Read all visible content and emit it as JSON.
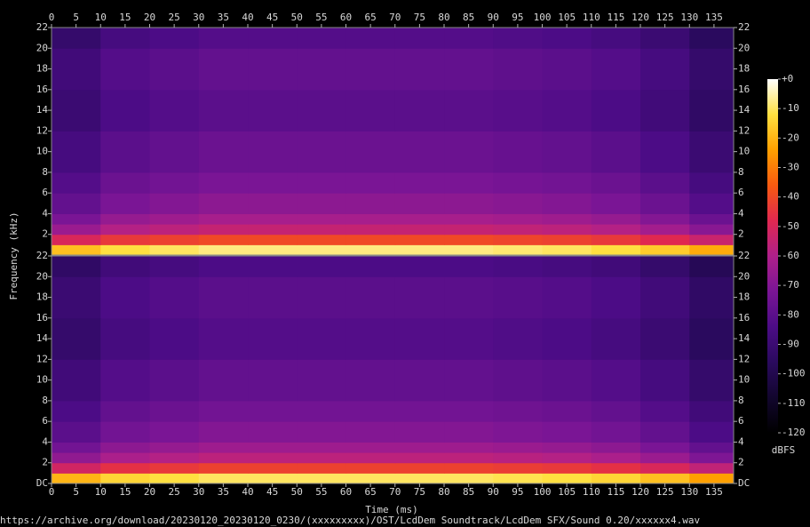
{
  "chart_data": {
    "type": "spectrogram",
    "xlabel": "Time (ms)",
    "ylabel": "Frequency (kHz)",
    "xlim": [
      0,
      139
    ],
    "xticks": [
      0,
      5,
      10,
      15,
      20,
      25,
      30,
      35,
      40,
      45,
      50,
      55,
      60,
      65,
      70,
      75,
      80,
      85,
      90,
      95,
      100,
      105,
      110,
      115,
      120,
      125,
      130,
      135
    ],
    "ylim": [
      0,
      22
    ],
    "xbins": [
      0,
      10,
      20,
      30,
      40,
      50,
      60,
      70,
      80,
      90,
      100,
      110,
      120,
      130,
      139
    ],
    "ybins": [
      0,
      1,
      2,
      3,
      4,
      6,
      8,
      12,
      16,
      20,
      22
    ],
    "zlim": [
      -120,
      0
    ],
    "zticks": [
      {
        "value": 0,
        "label": "+0"
      },
      -10,
      -20,
      -30,
      -40,
      -50,
      -60,
      -70,
      -80,
      -90,
      -100,
      -110,
      -120
    ],
    "zlabel": "dBFS",
    "colormap": [
      "#000000",
      "#12062e",
      "#2a0a5e",
      "#4c0c86",
      "#7a1595",
      "#b0208a",
      "#e02850",
      "#f85a10",
      "#ffa000",
      "#ffe040",
      "#ffffff"
    ],
    "channels": [
      {
        "yticks": [
          2,
          4,
          6,
          8,
          10,
          12,
          14,
          16,
          18,
          20,
          22
        ],
        "values": [
          [
            -18,
            -12,
            -10,
            -8,
            -8,
            -8,
            -8,
            -8,
            -8,
            -9,
            -10,
            -12,
            -16,
            -22
          ],
          [
            -50,
            -44,
            -42,
            -40,
            -40,
            -40,
            -40,
            -40,
            -40,
            -41,
            -42,
            -44,
            -48,
            -54
          ],
          [
            -65,
            -59,
            -57,
            -55,
            -55,
            -55,
            -55,
            -55,
            -55,
            -56,
            -57,
            -59,
            -63,
            -69
          ],
          [
            -72,
            -66,
            -64,
            -62,
            -62,
            -62,
            -62,
            -62,
            -62,
            -63,
            -64,
            -66,
            -70,
            -76
          ],
          [
            -78,
            -72,
            -70,
            -68,
            -68,
            -68,
            -68,
            -68,
            -68,
            -69,
            -70,
            -72,
            -76,
            -82
          ],
          [
            -82,
            -76,
            -74,
            -72,
            -72,
            -72,
            -72,
            -72,
            -72,
            -73,
            -74,
            -76,
            -80,
            -86
          ],
          [
            -86,
            -80,
            -78,
            -76,
            -76,
            -76,
            -76,
            -76,
            -76,
            -77,
            -78,
            -80,
            -84,
            -90
          ],
          [
            -90,
            -84,
            -82,
            -80,
            -80,
            -80,
            -80,
            -80,
            -80,
            -81,
            -82,
            -84,
            -88,
            -94
          ],
          [
            -88,
            -82,
            -80,
            -78,
            -78,
            -78,
            -78,
            -78,
            -78,
            -79,
            -80,
            -82,
            -86,
            -92
          ],
          [
            -92,
            -86,
            -84,
            -82,
            -82,
            -82,
            -82,
            -82,
            -82,
            -83,
            -84,
            -86,
            -90,
            -96
          ]
        ]
      },
      {
        "yticks": [
          {
            "value": 0,
            "label": "DC"
          },
          2,
          4,
          6,
          8,
          10,
          12,
          14,
          16,
          18,
          20,
          22
        ],
        "values": [
          [
            -20,
            -14,
            -12,
            -10,
            -10,
            -10,
            -10,
            -10,
            -10,
            -11,
            -12,
            -14,
            -18,
            -24
          ],
          [
            -52,
            -46,
            -44,
            -42,
            -42,
            -42,
            -42,
            -42,
            -42,
            -43,
            -44,
            -46,
            -50,
            -56
          ],
          [
            -67,
            -61,
            -59,
            -57,
            -57,
            -57,
            -57,
            -57,
            -57,
            -58,
            -59,
            -61,
            -65,
            -71
          ],
          [
            -74,
            -68,
            -66,
            -64,
            -64,
            -64,
            -64,
            -64,
            -64,
            -65,
            -66,
            -68,
            -72,
            -78
          ],
          [
            -80,
            -74,
            -72,
            -70,
            -70,
            -70,
            -70,
            -70,
            -70,
            -71,
            -72,
            -74,
            -78,
            -84
          ],
          [
            -84,
            -78,
            -76,
            -74,
            -74,
            -74,
            -74,
            -74,
            -74,
            -75,
            -76,
            -78,
            -82,
            -88
          ],
          [
            -88,
            -82,
            -80,
            -78,
            -78,
            -78,
            -78,
            -78,
            -78,
            -79,
            -80,
            -82,
            -86,
            -92
          ],
          [
            -92,
            -86,
            -84,
            -82,
            -82,
            -82,
            -82,
            -82,
            -82,
            -83,
            -84,
            -86,
            -90,
            -96
          ],
          [
            -90,
            -84,
            -82,
            -80,
            -80,
            -80,
            -80,
            -80,
            -80,
            -81,
            -82,
            -84,
            -88,
            -94
          ],
          [
            -94,
            -88,
            -86,
            -84,
            -84,
            -84,
            -84,
            -84,
            -84,
            -85,
            -86,
            -88,
            -92,
            -98
          ]
        ]
      }
    ]
  },
  "footer": "https://archive.org/download/20230120_20230120_0230/(xxxxxxxxx)/OST/LcdDem Soundtrack/LcdDem SFX/Sound 0.20/xxxxxx4.wav"
}
